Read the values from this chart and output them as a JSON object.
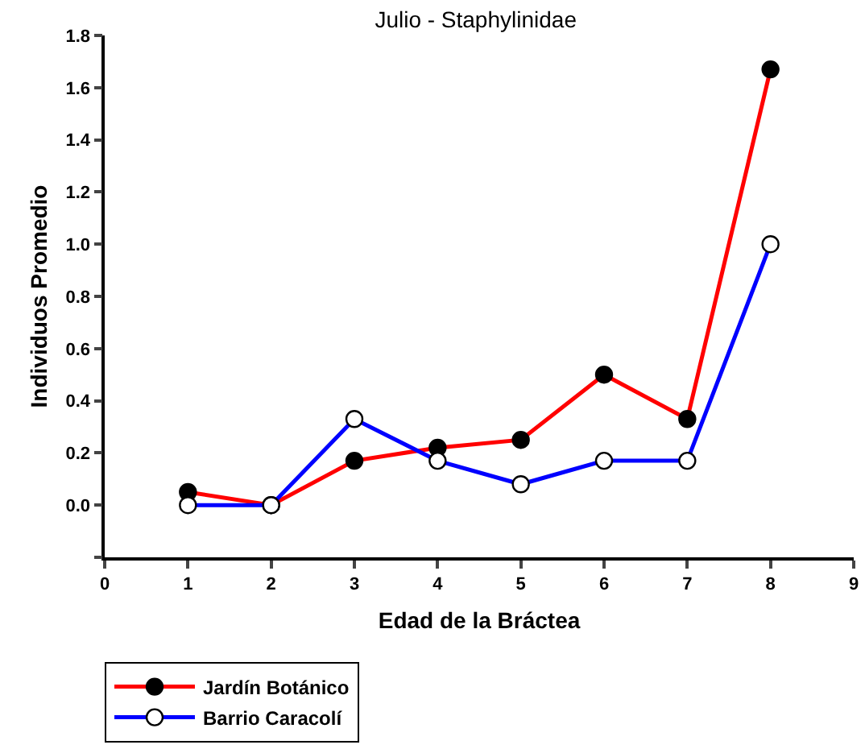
{
  "chart_data": {
    "type": "line",
    "title": "Julio - Staphylinidae",
    "xlabel": "Edad de la Bráctea",
    "ylabel": "Individuos Promedio",
    "x": [
      1,
      2,
      3,
      4,
      5,
      6,
      7,
      8
    ],
    "series": [
      {
        "name": "Jardín Botánico",
        "color": "#ff0000",
        "values": [
          0.05,
          0.0,
          0.17,
          0.22,
          0.25,
          0.5,
          0.33,
          1.67
        ]
      },
      {
        "name": "Barrio Caracolí",
        "color": "#0000ff",
        "values": [
          0.0,
          0.0,
          0.33,
          0.17,
          0.08,
          0.17,
          0.17,
          1.0
        ]
      }
    ],
    "xlim": [
      0,
      9
    ],
    "xticks": [
      0,
      1,
      2,
      3,
      4,
      5,
      6,
      7,
      8,
      9
    ],
    "ylim": [
      -0.2,
      1.8
    ],
    "yticks": [
      {
        "value": -0.2,
        "label": null
      },
      {
        "value": 0,
        "label": "0.0"
      },
      0.2,
      0.4,
      0.6,
      0.8,
      {
        "value": 1,
        "label": "1.0"
      },
      1.2,
      1.4,
      1.6,
      1.8
    ],
    "legend": "bottom left",
    "marker": "circle",
    "line_style": "solid"
  }
}
